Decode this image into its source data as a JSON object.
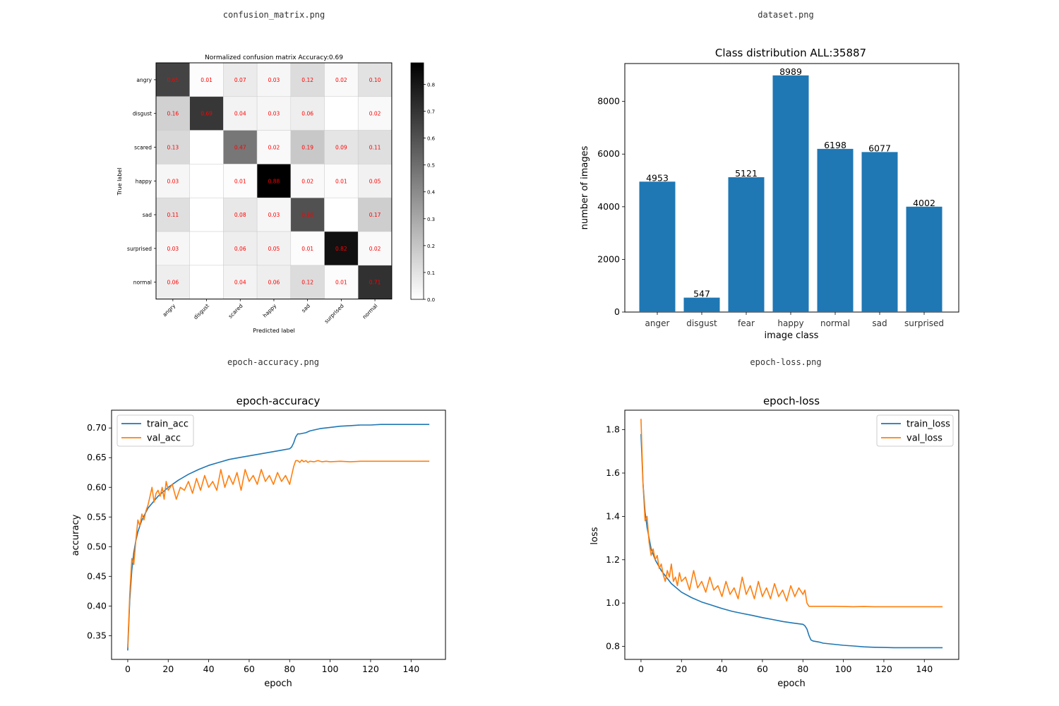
{
  "files": {
    "cm": "confusion_matrix.png",
    "ds": "dataset.png",
    "acc": "epoch-accuracy.png",
    "loss": "epoch-loss.png"
  },
  "chart_data": [
    {
      "type": "heatmap",
      "title": "Normalized confusion matrix Accuracy:0.69",
      "xlabel": "Predicted label",
      "ylabel": "True label",
      "labels": [
        "angry",
        "disgust",
        "scared",
        "happy",
        "sad",
        "surprised",
        "normal"
      ],
      "matrix": [
        [
          0.65,
          0.01,
          0.07,
          0.03,
          0.12,
          0.02,
          0.1
        ],
        [
          0.16,
          0.69,
          0.04,
          0.03,
          0.06,
          null,
          0.02
        ],
        [
          0.13,
          null,
          0.47,
          0.02,
          0.19,
          0.09,
          0.11
        ],
        [
          0.03,
          null,
          0.01,
          0.88,
          0.02,
          0.01,
          0.05
        ],
        [
          0.11,
          null,
          0.08,
          0.03,
          0.6,
          null,
          0.17
        ],
        [
          0.03,
          null,
          0.06,
          0.05,
          0.01,
          0.82,
          0.02
        ],
        [
          0.06,
          null,
          0.04,
          0.06,
          0.12,
          0.01,
          0.71
        ]
      ],
      "colorbar_ticks": [
        "0.0",
        "0.1",
        "0.2",
        "0.3",
        "0.4",
        "0.5",
        "0.6",
        "0.7",
        "0.8"
      ],
      "vmax": 0.88,
      "cmap": "gray_r",
      "annotation_color": "#ff0000"
    },
    {
      "type": "bar",
      "title": "Class distribution ALL:35887",
      "xlabel": "image class",
      "ylabel": "number of images",
      "categories": [
        "anger",
        "disgust",
        "fear",
        "happy",
        "normal",
        "sad",
        "surprised"
      ],
      "values": [
        4953,
        547,
        5121,
        8989,
        6198,
        6077,
        4002
      ],
      "ylim": [
        0,
        9439
      ],
      "yticks": [
        0,
        2000,
        4000,
        6000,
        8000
      ],
      "bar_color": "#1f77b4"
    },
    {
      "type": "line",
      "title": "epoch-accuracy",
      "xlabel": "epoch",
      "ylabel": "accuracy",
      "xlim": [
        -8,
        157
      ],
      "ylim": [
        0.31,
        0.73
      ],
      "xticks": [
        0,
        20,
        40,
        60,
        80,
        100,
        120,
        140
      ],
      "yticks": [
        0.35,
        0.4,
        0.45,
        0.5,
        0.55,
        0.6,
        0.65,
        0.7
      ],
      "legend_position": "top-left",
      "series": [
        {
          "name": "train_acc",
          "color": "#1f77b4",
          "x": [
            0,
            1,
            2,
            3,
            4,
            5,
            7,
            10,
            15,
            20,
            25,
            30,
            35,
            40,
            45,
            50,
            55,
            60,
            65,
            70,
            75,
            80,
            81,
            82,
            83,
            84,
            85,
            88,
            90,
            95,
            100,
            105,
            110,
            115,
            120,
            125,
            130,
            135,
            140,
            145,
            149
          ],
          "y": [
            0.325,
            0.41,
            0.46,
            0.49,
            0.51,
            0.525,
            0.545,
            0.565,
            0.585,
            0.6,
            0.612,
            0.622,
            0.63,
            0.637,
            0.642,
            0.647,
            0.65,
            0.653,
            0.656,
            0.659,
            0.662,
            0.665,
            0.668,
            0.675,
            0.685,
            0.69,
            0.69,
            0.692,
            0.695,
            0.699,
            0.701,
            0.703,
            0.704,
            0.705,
            0.705,
            0.706,
            0.706,
            0.706,
            0.706,
            0.706,
            0.706
          ]
        },
        {
          "name": "val_acc",
          "color": "#ff7f0e",
          "x": [
            0,
            1,
            2,
            3,
            4,
            5,
            6,
            7,
            8,
            9,
            10,
            11,
            12,
            13,
            14,
            15,
            16,
            17,
            18,
            19,
            20,
            22,
            24,
            26,
            28,
            30,
            32,
            34,
            36,
            38,
            40,
            42,
            44,
            46,
            48,
            50,
            52,
            54,
            56,
            58,
            60,
            62,
            64,
            66,
            68,
            70,
            72,
            74,
            76,
            78,
            80,
            81,
            82,
            83,
            84,
            85,
            86,
            87,
            88,
            89,
            90,
            92,
            94,
            96,
            98,
            100,
            105,
            110,
            115,
            120,
            125,
            130,
            135,
            140,
            145,
            149
          ],
          "y": [
            0.33,
            0.42,
            0.48,
            0.47,
            0.51,
            0.545,
            0.535,
            0.555,
            0.545,
            0.56,
            0.57,
            0.585,
            0.6,
            0.575,
            0.59,
            0.595,
            0.585,
            0.6,
            0.58,
            0.61,
            0.595,
            0.605,
            0.58,
            0.6,
            0.595,
            0.61,
            0.59,
            0.615,
            0.595,
            0.62,
            0.6,
            0.61,
            0.595,
            0.63,
            0.6,
            0.62,
            0.605,
            0.625,
            0.595,
            0.63,
            0.61,
            0.62,
            0.605,
            0.63,
            0.61,
            0.62,
            0.605,
            0.625,
            0.61,
            0.62,
            0.605,
            0.62,
            0.635,
            0.645,
            0.645,
            0.642,
            0.646,
            0.643,
            0.645,
            0.642,
            0.644,
            0.643,
            0.645,
            0.643,
            0.644,
            0.643,
            0.644,
            0.643,
            0.644,
            0.644,
            0.644,
            0.644,
            0.644,
            0.644,
            0.644,
            0.644
          ]
        }
      ]
    },
    {
      "type": "line",
      "title": "epoch-loss",
      "xlabel": "epoch",
      "ylabel": "loss",
      "xlim": [
        -8,
        157
      ],
      "ylim": [
        0.74,
        1.89
      ],
      "xticks": [
        0,
        20,
        40,
        60,
        80,
        100,
        120,
        140
      ],
      "yticks": [
        0.8,
        1.0,
        1.2,
        1.4,
        1.6,
        1.8
      ],
      "legend_position": "top-right",
      "series": [
        {
          "name": "train_loss",
          "color": "#1f77b4",
          "x": [
            0,
            1,
            2,
            3,
            4,
            5,
            7,
            10,
            15,
            20,
            25,
            30,
            35,
            40,
            45,
            50,
            55,
            60,
            65,
            70,
            75,
            80,
            81,
            82,
            83,
            84,
            85,
            88,
            90,
            95,
            100,
            105,
            110,
            115,
            120,
            125,
            130,
            135,
            140,
            145,
            149
          ],
          "y": [
            1.78,
            1.55,
            1.42,
            1.35,
            1.3,
            1.25,
            1.2,
            1.15,
            1.09,
            1.05,
            1.025,
            1.005,
            0.99,
            0.975,
            0.962,
            0.952,
            0.943,
            0.933,
            0.924,
            0.915,
            0.908,
            0.902,
            0.895,
            0.88,
            0.85,
            0.83,
            0.825,
            0.82,
            0.815,
            0.81,
            0.805,
            0.802,
            0.798,
            0.796,
            0.795,
            0.794,
            0.794,
            0.794,
            0.794,
            0.794,
            0.794
          ]
        },
        {
          "name": "val_loss",
          "color": "#ff7f0e",
          "x": [
            0,
            1,
            2,
            3,
            4,
            5,
            6,
            7,
            8,
            9,
            10,
            11,
            12,
            13,
            14,
            15,
            16,
            17,
            18,
            19,
            20,
            22,
            24,
            26,
            28,
            30,
            32,
            34,
            36,
            38,
            40,
            42,
            44,
            46,
            48,
            50,
            52,
            54,
            56,
            58,
            60,
            62,
            64,
            66,
            68,
            70,
            72,
            74,
            76,
            78,
            80,
            81,
            82,
            83,
            85,
            88,
            90,
            95,
            100,
            105,
            110,
            115,
            120,
            125,
            130,
            135,
            140,
            145,
            149
          ],
          "y": [
            1.85,
            1.55,
            1.38,
            1.4,
            1.28,
            1.22,
            1.25,
            1.2,
            1.22,
            1.16,
            1.18,
            1.13,
            1.1,
            1.15,
            1.12,
            1.18,
            1.1,
            1.12,
            1.08,
            1.14,
            1.1,
            1.12,
            1.06,
            1.15,
            1.07,
            1.1,
            1.05,
            1.12,
            1.06,
            1.08,
            1.03,
            1.1,
            1.04,
            1.07,
            1.02,
            1.12,
            1.04,
            1.08,
            1.02,
            1.1,
            1.03,
            1.07,
            1.02,
            1.09,
            1.03,
            1.06,
            1.01,
            1.08,
            1.03,
            1.07,
            1.04,
            1.06,
            1.0,
            0.985,
            0.985,
            0.985,
            0.985,
            0.985,
            0.984,
            0.983,
            0.984,
            0.983,
            0.983,
            0.983,
            0.983,
            0.983,
            0.983,
            0.983,
            0.983
          ]
        }
      ]
    }
  ]
}
